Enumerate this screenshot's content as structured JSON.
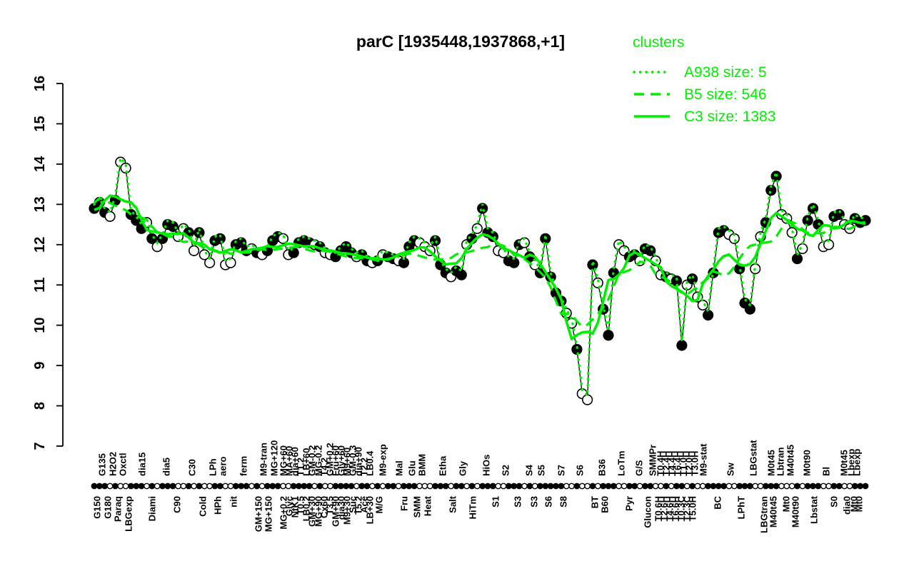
{
  "title": "parC [1935448,1937868,+1]",
  "colors": {
    "cluster_green": "#00EE00",
    "series_black": "#000000",
    "background": "#FFFFFF"
  },
  "legend": {
    "header": "clusters",
    "entries": [
      {
        "label": "A938 size: 5",
        "style": "dotted"
      },
      {
        "label": "B5 size: 546",
        "style": "dashed"
      },
      {
        "label": "C3 size: 1383",
        "style": "solid"
      }
    ]
  },
  "chart_data": {
    "type": "line",
    "title": "parC [1935448,1937868,+1]",
    "series_name": "parC expression level (log2)",
    "ylim": [
      7,
      16
    ],
    "yticks": [
      7,
      8,
      9,
      10,
      11,
      12,
      13,
      14,
      15,
      16
    ],
    "grid": false,
    "legend_position": "top-right",
    "marker_legend": "f = filled circle, o = open circle",
    "points": [
      [
        12.9,
        "f"
      ],
      [
        13.05,
        "f"
      ],
      [
        12.8,
        "f"
      ],
      [
        12.7,
        "o"
      ],
      [
        13.1,
        "f"
      ],
      [
        14.05,
        "o"
      ],
      [
        13.9,
        "o"
      ],
      [
        12.75,
        "f"
      ],
      [
        12.6,
        "f"
      ],
      [
        12.4,
        "f"
      ],
      [
        12.55,
        "o"
      ],
      [
        12.15,
        "f"
      ],
      [
        11.95,
        "o"
      ],
      [
        12.15,
        "f"
      ],
      [
        12.5,
        "f"
      ],
      [
        12.45,
        "f"
      ],
      [
        12.2,
        "o"
      ],
      [
        12.4,
        "o"
      ],
      [
        12.3,
        "f"
      ],
      [
        11.85,
        "o"
      ],
      [
        12.3,
        "f"
      ],
      [
        11.75,
        "o"
      ],
      [
        11.55,
        "o"
      ],
      [
        12.1,
        "f"
      ],
      [
        12.15,
        "f"
      ],
      [
        11.5,
        "o"
      ],
      [
        11.55,
        "o"
      ],
      [
        12.0,
        "f"
      ],
      [
        12.05,
        "f"
      ],
      [
        11.85,
        "f"
      ],
      [
        11.9,
        "o"
      ],
      [
        11.8,
        "f"
      ],
      [
        11.75,
        "o"
      ],
      [
        11.85,
        "f"
      ],
      [
        12.1,
        "f"
      ],
      [
        12.2,
        "f"
      ],
      [
        12.15,
        "o"
      ],
      [
        11.75,
        "o"
      ],
      [
        11.8,
        "f"
      ],
      [
        12.05,
        "f"
      ],
      [
        12.1,
        "f"
      ],
      [
        12.05,
        "f"
      ],
      [
        12.0,
        "o"
      ],
      [
        11.95,
        "f"
      ],
      [
        11.8,
        "o"
      ],
      [
        11.75,
        "o"
      ],
      [
        11.7,
        "f"
      ],
      [
        11.85,
        "f"
      ],
      [
        11.95,
        "f"
      ],
      [
        11.8,
        "f"
      ],
      [
        11.7,
        "o"
      ],
      [
        11.75,
        "f"
      ],
      [
        11.6,
        "f"
      ],
      [
        11.55,
        "o"
      ],
      [
        11.6,
        "f"
      ],
      [
        11.75,
        "o"
      ],
      [
        11.7,
        "f"
      ],
      [
        11.65,
        "f"
      ],
      [
        11.6,
        "o"
      ],
      [
        11.55,
        "f"
      ],
      [
        11.95,
        "f"
      ],
      [
        12.1,
        "f"
      ],
      [
        12.05,
        "o"
      ],
      [
        11.95,
        "o"
      ],
      [
        11.85,
        "o"
      ],
      [
        12.1,
        "f"
      ],
      [
        11.5,
        "f"
      ],
      [
        11.3,
        "f"
      ],
      [
        11.2,
        "o"
      ],
      [
        11.35,
        "f"
      ],
      [
        11.25,
        "f"
      ],
      [
        12.0,
        "o"
      ],
      [
        12.15,
        "f"
      ],
      [
        12.4,
        "o"
      ],
      [
        12.9,
        "f"
      ],
      [
        12.3,
        "f"
      ],
      [
        12.2,
        "f"
      ],
      [
        11.85,
        "o"
      ],
      [
        11.8,
        "o"
      ],
      [
        11.6,
        "f"
      ],
      [
        11.55,
        "f"
      ],
      [
        12.0,
        "f"
      ],
      [
        12.05,
        "o"
      ],
      [
        11.7,
        "f"
      ],
      [
        11.5,
        "o"
      ],
      [
        11.3,
        "f"
      ],
      [
        12.15,
        "f"
      ],
      [
        11.2,
        "f"
      ],
      [
        10.8,
        "f"
      ],
      [
        10.6,
        "f"
      ],
      [
        10.3,
        "o"
      ],
      [
        10.05,
        "o"
      ],
      [
        9.4,
        "f"
      ],
      [
        8.3,
        "o"
      ],
      [
        8.15,
        "o"
      ],
      [
        11.5,
        "f"
      ],
      [
        11.05,
        "o"
      ],
      [
        10.4,
        "f"
      ],
      [
        9.75,
        "f"
      ],
      [
        11.3,
        "f"
      ],
      [
        12.0,
        "o"
      ],
      [
        11.85,
        "o"
      ],
      [
        11.7,
        "f"
      ],
      [
        11.75,
        "f"
      ],
      [
        11.6,
        "o"
      ],
      [
        11.9,
        "f"
      ],
      [
        11.85,
        "f"
      ],
      [
        11.6,
        "o"
      ],
      [
        11.25,
        "o"
      ],
      [
        11.2,
        "f"
      ],
      [
        11.15,
        "o"
      ],
      [
        11.1,
        "f"
      ],
      [
        9.5,
        "f"
      ],
      [
        11.0,
        "o"
      ],
      [
        11.15,
        "f"
      ],
      [
        10.7,
        "o"
      ],
      [
        10.5,
        "o"
      ],
      [
        10.25,
        "f"
      ],
      [
        11.3,
        "f"
      ],
      [
        12.3,
        "f"
      ],
      [
        12.35,
        "f"
      ],
      [
        12.25,
        "o"
      ],
      [
        12.15,
        "o"
      ],
      [
        11.4,
        "f"
      ],
      [
        10.55,
        "f"
      ],
      [
        10.4,
        "f"
      ],
      [
        11.4,
        "o"
      ],
      [
        12.2,
        "o"
      ],
      [
        12.55,
        "f"
      ],
      [
        13.35,
        "f"
      ],
      [
        13.7,
        "f"
      ],
      [
        12.75,
        "o"
      ],
      [
        12.65,
        "o"
      ],
      [
        12.3,
        "o"
      ],
      [
        11.65,
        "f"
      ],
      [
        11.9,
        "o"
      ],
      [
        12.6,
        "f"
      ],
      [
        12.9,
        "f"
      ],
      [
        12.5,
        "f"
      ],
      [
        11.95,
        "o"
      ],
      [
        12.0,
        "o"
      ],
      [
        12.7,
        "f"
      ],
      [
        12.75,
        "f"
      ],
      [
        12.5,
        "o"
      ],
      [
        12.4,
        "o"
      ],
      [
        12.65,
        "f"
      ],
      [
        12.55,
        "f"
      ],
      [
        12.6,
        "f"
      ]
    ],
    "clusters": [
      {
        "name": "A938",
        "size": 5,
        "style": "dotted"
      },
      {
        "name": "B5",
        "size": 546,
        "style": "dashed"
      },
      {
        "name": "C3",
        "size": 1383,
        "style": "solid"
      }
    ],
    "x_axis": {
      "top_labels": [
        [
          "G135",
          143
        ],
        [
          "H2O2",
          158
        ],
        [
          "Oxctl",
          172
        ],
        [
          "dia15",
          199
        ],
        [
          "dia5",
          233
        ],
        [
          "C30",
          269
        ],
        [
          "LPh",
          298
        ],
        [
          "aero",
          312
        ],
        [
          "ferm",
          341
        ],
        [
          "M9-tran",
          369
        ],
        [
          "MG+120",
          384
        ],
        [
          "MG+60",
          397
        ],
        [
          "MA+60",
          405
        ],
        [
          "dia+60",
          413
        ],
        [
          "T1.2",
          421
        ],
        [
          "LB+60",
          429
        ],
        [
          "GM-0.2",
          437
        ],
        [
          "MG-0.2",
          446
        ],
        [
          "T4.2",
          454
        ],
        [
          "GM+0.2",
          462
        ],
        [
          "Fru+60",
          470
        ],
        [
          "Gly+60",
          478
        ],
        [
          "M9+60",
          486
        ],
        [
          "GM-0.3",
          494
        ],
        [
          "dia+90",
          502
        ],
        [
          "T2.2",
          510
        ],
        [
          "LB0.4",
          518
        ],
        [
          "M9-exp",
          536
        ],
        [
          "Mal",
          559
        ],
        [
          "Glu",
          577
        ],
        [
          "BMM",
          591
        ],
        [
          "Etha",
          620
        ],
        [
          "Gly",
          648
        ],
        [
          "HiOs",
          681
        ],
        [
          "S2",
          708
        ],
        [
          "S4",
          741
        ],
        [
          "S5",
          758
        ],
        [
          "S7",
          786
        ],
        [
          "S6",
          812
        ],
        [
          "B36",
          843
        ],
        [
          "LoTm",
          870
        ],
        [
          "G/S",
          895
        ],
        [
          "SMMPr",
          914
        ],
        [
          "T0.4H",
          925
        ],
        [
          "T2.4H",
          933
        ],
        [
          "T4.4H",
          941
        ],
        [
          "T6.4H",
          949
        ],
        [
          "T1.0H",
          957
        ],
        [
          "T2.0H",
          965
        ],
        [
          "T3.0H",
          973
        ],
        [
          "M9-stat",
          985
        ],
        [
          "Sw",
          1023
        ],
        [
          "LBGstat",
          1055
        ],
        [
          "M0t45",
          1080
        ],
        [
          "Lbtran",
          1093
        ],
        [
          "M40t45",
          1107
        ],
        [
          "M0t90",
          1130
        ],
        [
          "Bl",
          1157
        ],
        [
          "M0t45",
          1182
        ],
        [
          "Lbexp",
          1192
        ],
        [
          "Lbexp",
          1200
        ]
      ],
      "bottom_labels": [
        [
          "G150",
          136
        ],
        [
          "G180",
          151
        ],
        [
          "Paraq",
          165
        ],
        [
          "LBGexp",
          180
        ],
        [
          "Diami",
          213
        ],
        [
          "C90",
          248
        ],
        [
          "Cold",
          284
        ],
        [
          "HPh",
          305
        ],
        [
          "nit",
          327
        ],
        [
          "GM+150",
          362
        ],
        [
          "MG+150",
          376
        ],
        [
          "MG+0.2",
          397
        ],
        [
          "Glyc",
          405
        ],
        [
          "NtK1",
          413
        ],
        [
          "T0.5",
          421
        ],
        [
          "LB0.2",
          429
        ],
        [
          "GM+30",
          437
        ],
        [
          "MG+90",
          446
        ],
        [
          "Cx60",
          454
        ],
        [
          "T3.5",
          462
        ],
        [
          "GM+90",
          470
        ],
        [
          "dia30",
          478
        ],
        [
          "M9+30",
          486
        ],
        [
          "Suc",
          494
        ],
        [
          "T5.2",
          502
        ],
        [
          "Ace",
          510
        ],
        [
          "LB+30",
          518
        ],
        [
          "M/G",
          531
        ],
        [
          "Fru",
          566
        ],
        [
          "SMM",
          584
        ],
        [
          "Heat",
          599
        ],
        [
          "Salt",
          634
        ],
        [
          "HiTm",
          662
        ],
        [
          "S1",
          694
        ],
        [
          "S3",
          725
        ],
        [
          "S3",
          748
        ],
        [
          "S6",
          768
        ],
        [
          "S8",
          789
        ],
        [
          "BT",
          833
        ],
        [
          "B60",
          847
        ],
        [
          "Pyr",
          881
        ],
        [
          "Glucon",
          907
        ],
        [
          "T0.6H",
          922
        ],
        [
          "T2.6H",
          930
        ],
        [
          "T4.6H",
          938
        ],
        [
          "T6.6H",
          946
        ],
        [
          "T0.3C",
          954
        ],
        [
          "T2.3C",
          962
        ],
        [
          "T5.0H",
          970
        ],
        [
          "BC",
          1005
        ],
        [
          "LPhT",
          1038
        ],
        [
          "LBGtran",
          1070
        ],
        [
          "M40t45",
          1083
        ],
        [
          "Mt0",
          1101
        ],
        [
          "M40t90",
          1114
        ],
        [
          "Lbstat",
          1140
        ],
        [
          "S0",
          1168
        ],
        [
          "dia0",
          1186
        ],
        [
          "Mt0",
          1196
        ],
        [
          "Mt0",
          1203
        ]
      ]
    }
  }
}
